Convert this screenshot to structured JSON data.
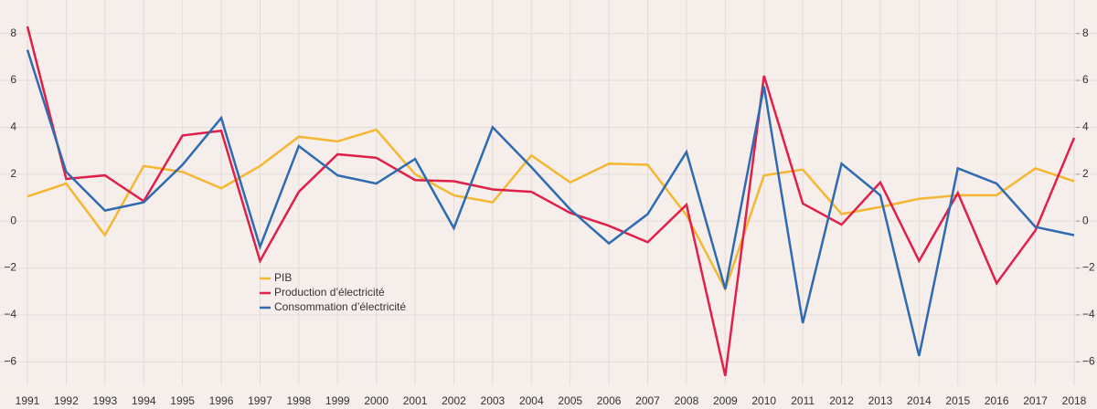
{
  "chart_data": {
    "type": "line",
    "x": [
      1991,
      1992,
      1993,
      1994,
      1995,
      1996,
      1997,
      1998,
      1999,
      2000,
      2001,
      2002,
      2003,
      2004,
      2005,
      2006,
      2007,
      2008,
      2009,
      2010,
      2011,
      2012,
      2013,
      2014,
      2015,
      2016,
      2017,
      2018
    ],
    "series": [
      {
        "name": "PIB",
        "color": "#f5b731",
        "values": [
          1.05,
          1.6,
          -0.6,
          2.35,
          2.1,
          1.4,
          2.35,
          3.6,
          3.4,
          3.9,
          2.0,
          1.1,
          0.8,
          2.8,
          1.65,
          2.45,
          2.4,
          0.25,
          -2.9,
          1.95,
          2.2,
          0.3,
          0.6,
          0.95,
          1.1,
          1.1,
          2.25,
          1.7
        ]
      },
      {
        "name": "Production d’électricité",
        "color": "#e0204a",
        "values": [
          8.3,
          1.8,
          1.95,
          0.85,
          3.65,
          3.85,
          -1.7,
          1.25,
          2.85,
          2.7,
          1.75,
          1.7,
          1.35,
          1.25,
          0.35,
          -0.2,
          -0.9,
          0.7,
          -6.6,
          6.2,
          0.75,
          -0.15,
          1.65,
          -1.7,
          1.2,
          -2.65,
          -0.4,
          3.55
        ]
      },
      {
        "name": "Consommation d’électricité",
        "color": "#2e6bb0",
        "values": [
          7.3,
          2.1,
          0.45,
          0.8,
          2.4,
          4.4,
          -1.1,
          3.2,
          1.95,
          1.6,
          2.65,
          -0.3,
          4.0,
          2.3,
          0.5,
          -0.95,
          0.3,
          2.95,
          -2.9,
          5.75,
          -4.35,
          2.45,
          1.1,
          -5.75,
          2.25,
          1.6,
          -0.25,
          -0.6
        ]
      }
    ],
    "xlim": [
      1991,
      2018
    ],
    "xticks": [
      1991,
      1992,
      1993,
      1994,
      1995,
      1996,
      1997,
      1998,
      1999,
      2000,
      2001,
      2002,
      2003,
      2004,
      2005,
      2006,
      2007,
      2008,
      2009,
      2010,
      2011,
      2012,
      2013,
      2014,
      2015,
      2016,
      2017,
      2018
    ],
    "ylim": [
      -7,
      9
    ],
    "yticks": [
      {
        "value": -6,
        "label": "−6"
      },
      {
        "value": -4,
        "label": "−4"
      },
      {
        "value": -2,
        "label": "−2"
      },
      0,
      2,
      4,
      6,
      8
    ],
    "y2lim": [
      -7,
      9
    ],
    "y2ticks": [
      {
        "value": -6,
        "label": "−6"
      },
      {
        "value": -4,
        "label": "−4"
      },
      {
        "value": -2,
        "label": "−2"
      },
      0,
      2,
      4,
      6,
      8
    ],
    "grid": true
  }
}
